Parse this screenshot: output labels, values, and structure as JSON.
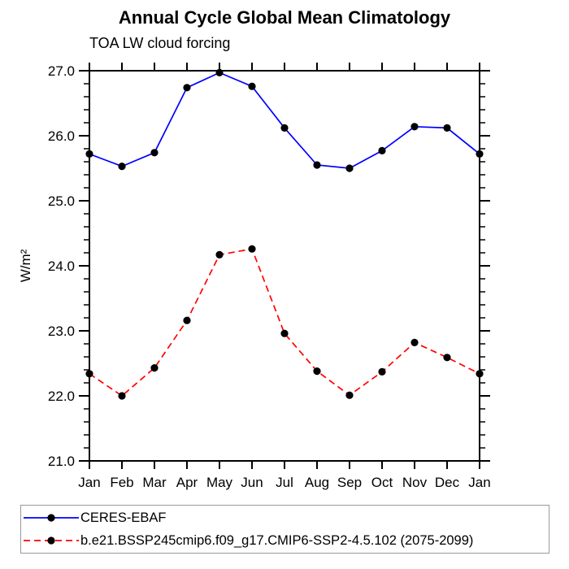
{
  "title": "Annual Cycle Global Mean Climatology",
  "subtitle": "TOA LW cloud forcing",
  "colors": {
    "axis": "#000000",
    "marker": "#000000",
    "series1": "#0000ff",
    "series2": "#ff0000",
    "legend_border": "#9a9a9a"
  },
  "chart_data": {
    "type": "line",
    "title": "Annual Cycle Global Mean Climatology",
    "subtitle": "TOA LW cloud forcing",
    "ylabel": "W/m²",
    "xlabel": "",
    "categories": [
      "Jan",
      "Feb",
      "Mar",
      "Apr",
      "May",
      "Jun",
      "Jul",
      "Aug",
      "Sep",
      "Oct",
      "Nov",
      "Dec",
      "Jan"
    ],
    "series": [
      {
        "name": "CERES-EBAF",
        "color": "#0000ff",
        "line_style": "solid",
        "dash": "",
        "marker": "black-dot",
        "values": [
          25.72,
          25.53,
          25.74,
          26.74,
          26.97,
          26.76,
          26.12,
          25.55,
          25.5,
          25.77,
          26.14,
          26.12,
          25.72
        ]
      },
      {
        "name": "b.e21.BSSP245cmip6.f09_g17.CMIP6-SSP2-4.5.102 (2075-2099)",
        "color": "#ff0000",
        "line_style": "dashed",
        "dash": "8,5",
        "marker": "black-dot",
        "values": [
          22.34,
          22.0,
          22.43,
          23.16,
          24.17,
          24.26,
          22.96,
          22.38,
          22.01,
          22.37,
          22.82,
          22.59,
          22.34
        ]
      }
    ],
    "ylim": [
      21.0,
      27.0
    ],
    "ytick_major_interval": 1.0,
    "ytick_minor_interval": 0.2,
    "yticklabels": [
      "21.0",
      "22.0",
      "23.0",
      "24.0",
      "25.0",
      "26.0",
      "27.0"
    ],
    "grid": false,
    "ticks": "outward-all-sides",
    "legend_position": "bottom-left-box"
  }
}
